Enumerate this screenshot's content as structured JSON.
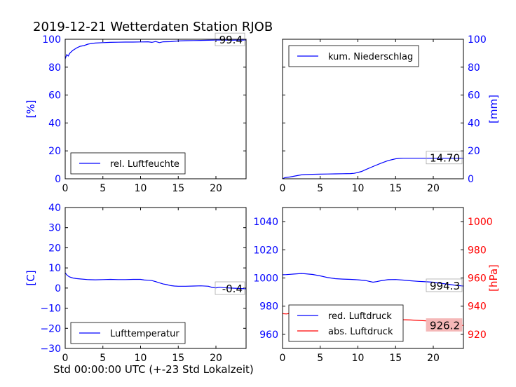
{
  "title": "2019-12-21 Wetterdaten Station RJOB",
  "xlabel": "Std 00:00:00 UTC (+-23 Std Lokalzeit)",
  "colors": {
    "blue": "#0000ff",
    "red": "#ff0000",
    "black": "#000000",
    "gray_box": "#aaaaaa",
    "red_box": "#f5b8b8"
  },
  "chart_data": [
    {
      "type": "line",
      "panel": "top-left",
      "ylabel": "[%]",
      "ylabel_side": "left",
      "xlim": [
        0,
        24
      ],
      "ylim": [
        0,
        100
      ],
      "xticks": [
        0,
        5,
        10,
        15,
        20
      ],
      "yticks": [
        0,
        20,
        40,
        60,
        80,
        100
      ],
      "legend_position": "lower-center",
      "last_value_label": "99.4",
      "series": [
        {
          "name": "rel. Luftfeuchte",
          "color": "#0000ff",
          "x": [
            0,
            0.2,
            0.4,
            0.6,
            0.8,
            1.0,
            1.3,
            1.6,
            2.0,
            2.5,
            3.0,
            3.5,
            4.0,
            5,
            6,
            7,
            8,
            9,
            10,
            11,
            11.5,
            12,
            12.5,
            13,
            14,
            15,
            16,
            17,
            18,
            19,
            20,
            21,
            22,
            23,
            24
          ],
          "y": [
            86,
            89,
            88,
            90,
            91,
            92,
            93,
            94,
            95,
            95.5,
            96.5,
            97,
            97.3,
            97.6,
            97.8,
            97.9,
            98,
            98,
            98.1,
            98.2,
            97.8,
            98.4,
            97.6,
            98.2,
            98.3,
            98.8,
            99,
            99.1,
            99.2,
            99.3,
            99.4,
            99.4,
            99.3,
            99.4,
            99.4
          ]
        }
      ]
    },
    {
      "type": "line",
      "panel": "top-right",
      "ylabel": "[mm]",
      "ylabel_side": "right",
      "xlim": [
        0,
        24
      ],
      "ylim": [
        0,
        100
      ],
      "xticks": [
        0,
        5,
        10,
        15,
        20
      ],
      "yticks": [
        0,
        20,
        40,
        60,
        80,
        100
      ],
      "legend_position": "top-left",
      "last_value_label": "14.70",
      "series": [
        {
          "name": "kum. Niederschlag",
          "color": "#0000ff",
          "x": [
            0,
            0.3,
            1,
            1.5,
            2,
            2.5,
            3,
            4,
            5,
            6,
            7,
            8,
            9,
            9.5,
            10,
            10.5,
            11,
            12,
            13,
            14,
            15,
            15.5,
            16,
            17,
            18,
            19,
            20,
            21,
            22,
            23,
            24
          ],
          "y": [
            0,
            0.8,
            1.3,
            1.8,
            2.3,
            2.8,
            3.0,
            3.2,
            3.3,
            3.4,
            3.5,
            3.6,
            3.7,
            3.9,
            4.5,
            5.3,
            6.5,
            8.8,
            11,
            13,
            14.3,
            14.6,
            14.7,
            14.7,
            14.7,
            14.7,
            14.7,
            14.7,
            14.7,
            14.7,
            14.7
          ]
        }
      ]
    },
    {
      "type": "line",
      "panel": "bottom-left",
      "ylabel": "[C]",
      "ylabel_side": "left",
      "xlim": [
        0,
        24
      ],
      "ylim": [
        -30,
        40
      ],
      "xticks": [
        0,
        5,
        10,
        15,
        20
      ],
      "yticks": [
        -30,
        -20,
        -10,
        0,
        10,
        20,
        30,
        40
      ],
      "legend_position": "lower-center",
      "last_value_label": "-0.4",
      "series": [
        {
          "name": "Lufttemperatur",
          "color": "#0000ff",
          "x": [
            0,
            0.3,
            0.6,
            1,
            1.5,
            2,
            3,
            4,
            5,
            6,
            7,
            8,
            9,
            10,
            10.5,
            11,
            11.5,
            12,
            12.5,
            13,
            13.5,
            14,
            14.5,
            15,
            16,
            17,
            18,
            19,
            19.5,
            20,
            20.5,
            21,
            22,
            23,
            24
          ],
          "y": [
            7.5,
            6.2,
            5.5,
            5,
            4.7,
            4.5,
            4.2,
            4.1,
            4.2,
            4.3,
            4.2,
            4.2,
            4.3,
            4.3,
            4.0,
            3.9,
            3.7,
            3.2,
            2.6,
            2.0,
            1.7,
            1.2,
            1.0,
            0.9,
            0.9,
            1.0,
            1.1,
            0.9,
            0.3,
            0.1,
            0.4,
            0.2,
            0.0,
            -0.2,
            -0.4
          ]
        }
      ]
    },
    {
      "type": "line",
      "panel": "bottom-right",
      "ylabel": "[hPa]",
      "ylabel_side": "right",
      "xlim": [
        0,
        24
      ],
      "ylim_left": [
        950,
        1050
      ],
      "ylim_right": [
        910,
        1010
      ],
      "xticks": [
        0,
        5,
        10,
        15,
        20
      ],
      "yticks_left": [
        960,
        980,
        1000,
        1020,
        1040
      ],
      "yticks_right": [
        920,
        940,
        960,
        980,
        1000
      ],
      "legend_position": "lower-left",
      "last_value_labels": [
        "994.3",
        "926.2"
      ],
      "series": [
        {
          "name": "red. Luftdruck",
          "color": "#0000ff",
          "axis": "left",
          "x": [
            0,
            0.5,
            1,
            1.5,
            2,
            2.5,
            3,
            4,
            5,
            6,
            7,
            8,
            9,
            10,
            11,
            11.5,
            12,
            12.5,
            13,
            14,
            15,
            16,
            17,
            18,
            19,
            20,
            21,
            22,
            23,
            24
          ],
          "y": [
            1002.3,
            1002.4,
            1002.6,
            1002.8,
            1003.0,
            1003.2,
            1003.0,
            1002.5,
            1001.5,
            1000.3,
            999.5,
            999.2,
            999.0,
            998.7,
            998.2,
            997.6,
            997.0,
            997.4,
            998.0,
            998.8,
            998.9,
            998.5,
            998.0,
            997.6,
            997.3,
            997.0,
            996.2,
            995.5,
            994.8,
            994.3
          ]
        },
        {
          "name": "abs. Luftdruck",
          "color": "#ff0000",
          "axis": "right",
          "x": [
            0,
            0.5,
            1,
            1.5,
            2,
            2.5,
            3,
            4,
            5,
            6,
            7,
            8,
            9,
            10,
            11,
            12,
            12.5,
            13,
            14,
            15,
            16,
            17,
            18,
            19,
            20,
            21,
            22,
            23,
            24
          ],
          "y": [
            934.7,
            934.5,
            934.9,
            935.0,
            935.3,
            935.1,
            934.9,
            934.4,
            933.6,
            932.6,
            932.0,
            931.6,
            931.3,
            931.0,
            930.7,
            930.4,
            930.2,
            930.6,
            931.0,
            930.8,
            930.4,
            930.2,
            929.9,
            929.6,
            929.3,
            928.4,
            927.6,
            926.8,
            926.2
          ]
        }
      ]
    }
  ]
}
